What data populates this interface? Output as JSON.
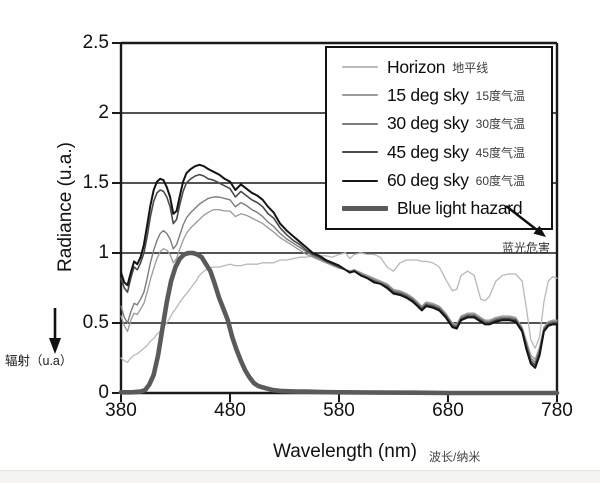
{
  "page": {
    "background": "#ffffff"
  },
  "axes": {
    "y_title": "Radiance (u.a.)",
    "y_title_zh": "辐射（u.a）",
    "x_title": "Wavelength (nm)",
    "x_title_zh": "波长/纳米"
  },
  "legend": {
    "items": [
      {
        "en": "Horizon",
        "zh": "地平线"
      },
      {
        "en": "15 deg sky",
        "zh": "15度气温"
      },
      {
        "en": "30 deg sky",
        "zh": "30度气温"
      },
      {
        "en": "45 deg sky",
        "zh": "45度气温"
      },
      {
        "en": "60 deg sky",
        "zh": "60度气温"
      },
      {
        "en": "Blue light hazard",
        "zh": ""
      }
    ],
    "hazard_zh": "蓝光危害"
  },
  "chart_data": {
    "type": "line",
    "title": "",
    "xlabel": "Wavelength (nm)",
    "ylabel": "Radiance (u.a.)",
    "xlim": [
      380,
      780
    ],
    "ylim": [
      0,
      2.5
    ],
    "x_ticks": [
      380,
      480,
      580,
      680,
      780
    ],
    "y_ticks": [
      0,
      0.5,
      1,
      1.5,
      2,
      2.5
    ],
    "y_tick_labels": [
      "0",
      "0.5",
      "1",
      "1.5",
      "2",
      "2.5"
    ],
    "grid": true,
    "legend_position": "top-right",
    "axis_color": "#1a1a1a",
    "series": [
      {
        "name": "Horizon",
        "color": "#b9b9b9",
        "width": 1.3,
        "x": [
          380,
          383,
          386,
          389,
          392,
          395,
          398,
          401,
          404,
          407,
          410,
          413,
          416,
          419,
          422,
          425,
          428,
          431,
          434,
          437,
          440,
          444,
          448,
          452,
          456,
          460,
          465,
          470,
          475,
          480,
          485,
          490,
          495,
          500,
          505,
          510,
          515,
          520,
          526,
          532,
          538,
          544,
          550,
          556,
          562,
          568,
          574,
          580,
          586,
          590,
          594,
          600,
          606,
          612,
          618,
          624,
          630,
          636,
          642,
          648,
          652,
          656,
          660,
          666,
          672,
          678,
          684,
          688,
          692,
          698,
          704,
          710,
          714,
          718,
          724,
          730,
          736,
          742,
          748,
          752,
          756,
          760,
          764,
          768,
          772,
          776,
          780
        ],
        "y": [
          0.25,
          0.23,
          0.22,
          0.25,
          0.27,
          0.28,
          0.3,
          0.32,
          0.34,
          0.37,
          0.39,
          0.42,
          0.44,
          0.47,
          0.5,
          0.54,
          0.58,
          0.61,
          0.65,
          0.68,
          0.71,
          0.75,
          0.79,
          0.84,
          0.87,
          0.89,
          0.9,
          0.9,
          0.91,
          0.92,
          0.91,
          0.91,
          0.92,
          0.92,
          0.92,
          0.93,
          0.93,
          0.93,
          0.95,
          0.95,
          0.96,
          0.97,
          0.97,
          0.98,
          0.98,
          0.98,
          0.97,
          0.99,
          1.0,
          0.96,
          0.99,
          1.0,
          0.99,
          0.99,
          0.97,
          0.9,
          0.87,
          0.93,
          0.95,
          0.95,
          0.95,
          0.94,
          0.94,
          0.93,
          0.9,
          0.81,
          0.73,
          0.74,
          0.84,
          0.87,
          0.84,
          0.67,
          0.66,
          0.69,
          0.8,
          0.84,
          0.85,
          0.85,
          0.8,
          0.6,
          0.38,
          0.32,
          0.4,
          0.65,
          0.8,
          0.83,
          0.82
        ]
      },
      {
        "name": "15 deg sky",
        "color": "#9a9a9a",
        "width": 1.3,
        "x": [
          380,
          383,
          386,
          389,
          392,
          395,
          398,
          401,
          404,
          407,
          410,
          413,
          416,
          419,
          422,
          425,
          428,
          431,
          434,
          437,
          440,
          444,
          448,
          452,
          456,
          460,
          465,
          470,
          475,
          480,
          485,
          490,
          495,
          500,
          505,
          510,
          515,
          520,
          526,
          532,
          538,
          544,
          550,
          556,
          562,
          568,
          574,
          580,
          586,
          590,
          594,
          600,
          606,
          612,
          618,
          624,
          630,
          636,
          642,
          648,
          652,
          656,
          660,
          666,
          672,
          678,
          684,
          688,
          692,
          698,
          704,
          710,
          714,
          718,
          724,
          730,
          736,
          742,
          748,
          752,
          756,
          760,
          764,
          768,
          772,
          776,
          780
        ],
        "y": [
          0.55,
          0.48,
          0.44,
          0.52,
          0.57,
          0.56,
          0.6,
          0.64,
          0.72,
          0.81,
          0.89,
          0.96,
          1.01,
          1.03,
          1.02,
          0.99,
          0.93,
          0.96,
          1.03,
          1.09,
          1.14,
          1.18,
          1.21,
          1.24,
          1.27,
          1.29,
          1.31,
          1.31,
          1.3,
          1.3,
          1.26,
          1.28,
          1.27,
          1.25,
          1.23,
          1.21,
          1.18,
          1.15,
          1.11,
          1.08,
          1.05,
          1.02,
          0.99,
          0.97,
          0.95,
          0.93,
          0.91,
          0.89,
          0.88,
          0.87,
          0.88,
          0.86,
          0.84,
          0.82,
          0.8,
          0.78,
          0.74,
          0.73,
          0.71,
          0.68,
          0.65,
          0.62,
          0.65,
          0.64,
          0.62,
          0.57,
          0.5,
          0.49,
          0.55,
          0.57,
          0.57,
          0.54,
          0.52,
          0.52,
          0.54,
          0.55,
          0.55,
          0.54,
          0.47,
          0.37,
          0.27,
          0.24,
          0.33,
          0.47,
          0.51,
          0.52,
          0.52
        ]
      },
      {
        "name": "30 deg sky",
        "color": "#7d7d7d",
        "width": 1.4,
        "x": [
          380,
          383,
          386,
          389,
          392,
          395,
          398,
          401,
          404,
          407,
          410,
          413,
          416,
          419,
          422,
          425,
          428,
          431,
          434,
          437,
          440,
          444,
          448,
          452,
          456,
          460,
          465,
          470,
          475,
          480,
          485,
          490,
          495,
          500,
          505,
          510,
          515,
          520,
          526,
          532,
          538,
          544,
          550,
          556,
          562,
          568,
          574,
          580,
          586,
          590,
          594,
          600,
          606,
          612,
          618,
          624,
          630,
          636,
          642,
          648,
          652,
          656,
          660,
          666,
          672,
          678,
          684,
          688,
          692,
          698,
          704,
          710,
          714,
          718,
          724,
          730,
          736,
          742,
          748,
          752,
          756,
          760,
          764,
          768,
          772,
          776,
          780
        ],
        "y": [
          0.62,
          0.54,
          0.5,
          0.58,
          0.64,
          0.63,
          0.67,
          0.72,
          0.82,
          0.93,
          1.02,
          1.09,
          1.14,
          1.16,
          1.14,
          1.1,
          1.03,
          1.06,
          1.13,
          1.2,
          1.25,
          1.29,
          1.32,
          1.35,
          1.37,
          1.39,
          1.4,
          1.4,
          1.39,
          1.38,
          1.33,
          1.36,
          1.34,
          1.31,
          1.29,
          1.26,
          1.22,
          1.19,
          1.14,
          1.1,
          1.07,
          1.04,
          1.01,
          0.98,
          0.96,
          0.94,
          0.92,
          0.9,
          0.88,
          0.87,
          0.88,
          0.85,
          0.83,
          0.81,
          0.79,
          0.77,
          0.73,
          0.72,
          0.7,
          0.67,
          0.64,
          0.61,
          0.64,
          0.63,
          0.61,
          0.56,
          0.49,
          0.48,
          0.54,
          0.56,
          0.56,
          0.53,
          0.51,
          0.51,
          0.53,
          0.54,
          0.54,
          0.53,
          0.46,
          0.35,
          0.25,
          0.22,
          0.31,
          0.46,
          0.5,
          0.51,
          0.51
        ]
      },
      {
        "name": "45 deg sky",
        "color": "#4a4a4a",
        "width": 1.6,
        "x": [
          380,
          383,
          386,
          389,
          392,
          395,
          398,
          401,
          404,
          407,
          410,
          413,
          416,
          419,
          422,
          425,
          428,
          431,
          434,
          437,
          440,
          444,
          448,
          452,
          456,
          460,
          465,
          470,
          475,
          480,
          485,
          490,
          495,
          500,
          505,
          510,
          515,
          520,
          526,
          532,
          538,
          544,
          550,
          556,
          562,
          568,
          574,
          580,
          586,
          590,
          594,
          600,
          606,
          612,
          618,
          624,
          630,
          636,
          642,
          648,
          652,
          656,
          660,
          666,
          672,
          678,
          684,
          688,
          692,
          698,
          704,
          710,
          714,
          718,
          724,
          730,
          736,
          742,
          748,
          752,
          756,
          760,
          764,
          768,
          772,
          776,
          780
        ],
        "y": [
          0.82,
          0.75,
          0.72,
          0.82,
          0.9,
          0.88,
          0.93,
          1.0,
          1.12,
          1.26,
          1.37,
          1.43,
          1.45,
          1.44,
          1.4,
          1.33,
          1.21,
          1.24,
          1.35,
          1.44,
          1.5,
          1.53,
          1.55,
          1.56,
          1.55,
          1.53,
          1.52,
          1.5,
          1.48,
          1.46,
          1.4,
          1.44,
          1.41,
          1.38,
          1.36,
          1.33,
          1.28,
          1.25,
          1.18,
          1.13,
          1.09,
          1.06,
          1.02,
          0.99,
          0.97,
          0.94,
          0.92,
          0.9,
          0.88,
          0.86,
          0.87,
          0.84,
          0.82,
          0.8,
          0.78,
          0.76,
          0.72,
          0.71,
          0.69,
          0.66,
          0.63,
          0.6,
          0.63,
          0.62,
          0.6,
          0.55,
          0.48,
          0.47,
          0.53,
          0.55,
          0.55,
          0.52,
          0.5,
          0.5,
          0.52,
          0.53,
          0.53,
          0.52,
          0.45,
          0.33,
          0.23,
          0.2,
          0.29,
          0.45,
          0.49,
          0.5,
          0.5
        ]
      },
      {
        "name": "60 deg sky",
        "color": "#141414",
        "width": 2.0,
        "x": [
          380,
          383,
          386,
          389,
          392,
          395,
          398,
          401,
          404,
          407,
          410,
          413,
          416,
          419,
          422,
          425,
          428,
          431,
          434,
          437,
          440,
          444,
          448,
          452,
          456,
          460,
          465,
          470,
          475,
          480,
          485,
          490,
          495,
          500,
          505,
          510,
          515,
          520,
          526,
          532,
          538,
          544,
          550,
          556,
          562,
          568,
          574,
          580,
          586,
          590,
          594,
          600,
          606,
          612,
          618,
          624,
          630,
          636,
          642,
          648,
          652,
          656,
          660,
          666,
          672,
          678,
          684,
          688,
          692,
          698,
          704,
          710,
          714,
          718,
          724,
          730,
          736,
          742,
          748,
          752,
          756,
          760,
          764,
          768,
          772,
          776,
          780
        ],
        "y": [
          0.86,
          0.79,
          0.77,
          0.86,
          0.94,
          0.92,
          0.97,
          1.06,
          1.2,
          1.34,
          1.45,
          1.51,
          1.53,
          1.52,
          1.47,
          1.4,
          1.28,
          1.3,
          1.41,
          1.51,
          1.57,
          1.6,
          1.62,
          1.63,
          1.62,
          1.6,
          1.58,
          1.56,
          1.53,
          1.51,
          1.45,
          1.49,
          1.46,
          1.43,
          1.41,
          1.38,
          1.33,
          1.29,
          1.21,
          1.16,
          1.12,
          1.08,
          1.04,
          1.0,
          0.98,
          0.95,
          0.93,
          0.91,
          0.88,
          0.86,
          0.87,
          0.84,
          0.82,
          0.79,
          0.78,
          0.75,
          0.71,
          0.7,
          0.68,
          0.65,
          0.62,
          0.59,
          0.62,
          0.61,
          0.59,
          0.54,
          0.47,
          0.46,
          0.52,
          0.54,
          0.54,
          0.51,
          0.49,
          0.49,
          0.51,
          0.52,
          0.52,
          0.51,
          0.44,
          0.31,
          0.21,
          0.18,
          0.27,
          0.44,
          0.48,
          0.49,
          0.49
        ]
      },
      {
        "name": "Blue light hazard",
        "color": "#5a5a5a",
        "width": 4.6,
        "x": [
          380,
          390,
          398,
          402,
          406,
          410,
          414,
          418,
          422,
          426,
          430,
          434,
          438,
          442,
          446,
          450,
          454,
          458,
          462,
          466,
          470,
          474,
          478,
          482,
          486,
          490,
          494,
          498,
          502,
          506,
          510,
          515,
          520,
          526,
          534,
          542,
          550,
          560,
          570,
          580,
          600,
          620,
          650,
          680,
          780
        ],
        "y": [
          0.005,
          0.005,
          0.01,
          0.02,
          0.06,
          0.13,
          0.27,
          0.46,
          0.65,
          0.8,
          0.9,
          0.96,
          0.99,
          1.0,
          1.0,
          0.99,
          0.97,
          0.92,
          0.87,
          0.78,
          0.68,
          0.6,
          0.52,
          0.4,
          0.31,
          0.23,
          0.16,
          0.11,
          0.07,
          0.05,
          0.04,
          0.03,
          0.02,
          0.015,
          0.012,
          0.01,
          0.01,
          0.008,
          0.006,
          0.005,
          0.004,
          0.003,
          0.002,
          0.0,
          0.0
        ]
      }
    ]
  }
}
